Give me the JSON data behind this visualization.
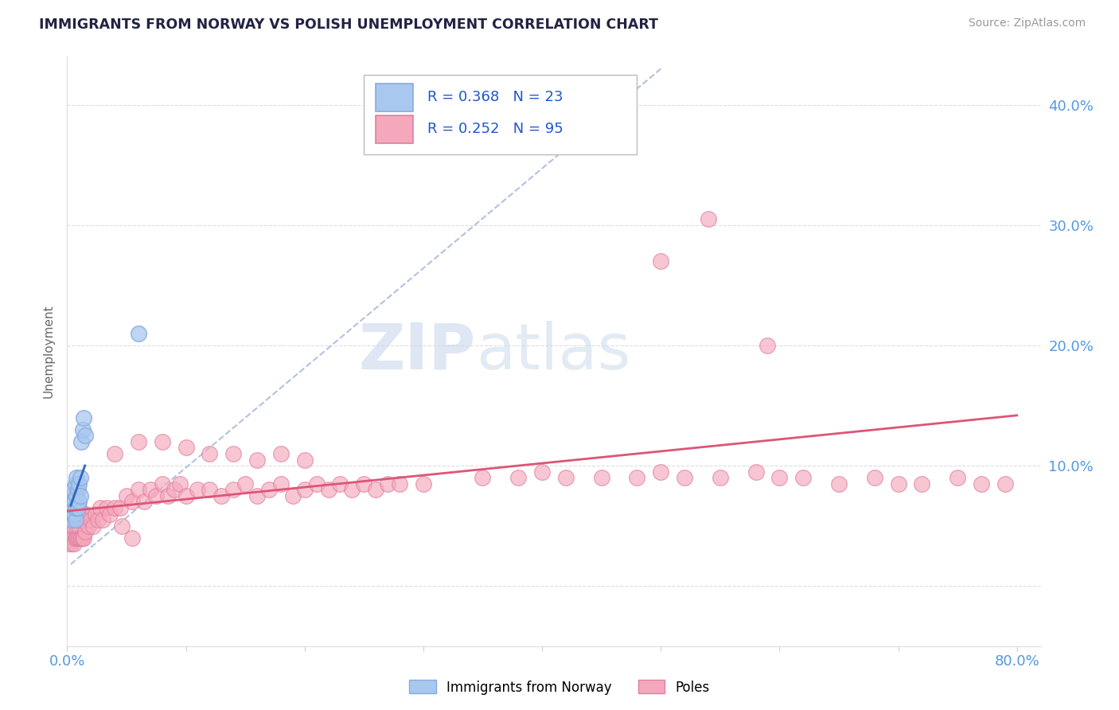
{
  "title": "IMMIGRANTS FROM NORWAY VS POLISH UNEMPLOYMENT CORRELATION CHART",
  "source": "Source: ZipAtlas.com",
  "ylabel": "Unemployment",
  "xlim_min": 0.0,
  "xlim_max": 0.82,
  "ylim_min": -0.05,
  "ylim_max": 0.44,
  "norway_color": "#a8c8f0",
  "norway_edge_color": "#88aadd",
  "poles_color": "#f5a8bc",
  "poles_edge_color": "#e080a0",
  "norway_line_color": "#3366bb",
  "poles_line_color": "#dd5577",
  "dash_line_color": "#aabbdd",
  "norway_R": "0.368",
  "norway_N": "23",
  "poles_R": "0.252",
  "poles_N": "95",
  "legend_text_color": "#2255cc",
  "ytick_color": "#5599dd",
  "xtick_color": "#5599dd",
  "watermark_zip": "ZIP",
  "watermark_atlas": "atlas",
  "watermark_color_zip": "#c8d8ec",
  "watermark_color_atlas": "#c0d4e8",
  "grid_color": "#dddddd",
  "norway_x": [
    0.003,
    0.004,
    0.004,
    0.005,
    0.005,
    0.005,
    0.006,
    0.006,
    0.007,
    0.007,
    0.007,
    0.008,
    0.008,
    0.009,
    0.009,
    0.01,
    0.01,
    0.011,
    0.011,
    0.012,
    0.013,
    0.014,
    0.015
  ],
  "norway_y": [
    0.065,
    0.055,
    0.075,
    0.06,
    0.07,
    0.08,
    0.06,
    0.07,
    0.055,
    0.065,
    0.085,
    0.075,
    0.09,
    0.065,
    0.08,
    0.07,
    0.085,
    0.075,
    0.09,
    0.12,
    0.13,
    0.14,
    0.125
  ],
  "norway_outlier_x": [
    0.06
  ],
  "norway_outlier_y": [
    0.21
  ],
  "poles_x_low": [
    0.002,
    0.003,
    0.003,
    0.004,
    0.004,
    0.005,
    0.005,
    0.006,
    0.006,
    0.007,
    0.007,
    0.007,
    0.008,
    0.008,
    0.008,
    0.009,
    0.009,
    0.01,
    0.01,
    0.01,
    0.011,
    0.011,
    0.012,
    0.012,
    0.013,
    0.013,
    0.014,
    0.014,
    0.015,
    0.016,
    0.018,
    0.02,
    0.022,
    0.024,
    0.026,
    0.028,
    0.03,
    0.033,
    0.036,
    0.04
  ],
  "poles_y_low": [
    0.035,
    0.04,
    0.055,
    0.035,
    0.05,
    0.04,
    0.06,
    0.035,
    0.05,
    0.04,
    0.055,
    0.065,
    0.04,
    0.05,
    0.065,
    0.04,
    0.055,
    0.04,
    0.05,
    0.065,
    0.04,
    0.055,
    0.04,
    0.055,
    0.04,
    0.06,
    0.04,
    0.055,
    0.045,
    0.06,
    0.05,
    0.055,
    0.05,
    0.06,
    0.055,
    0.065,
    0.055,
    0.065,
    0.06,
    0.065
  ],
  "poles_x_mid": [
    0.045,
    0.05,
    0.055,
    0.06,
    0.065,
    0.07,
    0.075,
    0.08,
    0.085,
    0.09,
    0.095,
    0.1,
    0.11,
    0.12,
    0.13,
    0.14,
    0.15,
    0.16,
    0.17,
    0.18,
    0.19,
    0.2,
    0.21,
    0.22,
    0.23,
    0.24,
    0.25,
    0.26,
    0.27,
    0.28
  ],
  "poles_y_mid": [
    0.065,
    0.075,
    0.07,
    0.08,
    0.07,
    0.08,
    0.075,
    0.085,
    0.075,
    0.08,
    0.085,
    0.075,
    0.08,
    0.08,
    0.075,
    0.08,
    0.085,
    0.075,
    0.08,
    0.085,
    0.075,
    0.08,
    0.085,
    0.08,
    0.085,
    0.08,
    0.085,
    0.08,
    0.085,
    0.085
  ],
  "poles_x_high": [
    0.3,
    0.35,
    0.38,
    0.4,
    0.42,
    0.45,
    0.48,
    0.5,
    0.52,
    0.55,
    0.58,
    0.6,
    0.62,
    0.65,
    0.68,
    0.7,
    0.72,
    0.75,
    0.77,
    0.79
  ],
  "poles_y_high": [
    0.085,
    0.09,
    0.09,
    0.095,
    0.09,
    0.09,
    0.09,
    0.095,
    0.09,
    0.09,
    0.095,
    0.09,
    0.09,
    0.085,
    0.09,
    0.085,
    0.085,
    0.09,
    0.085,
    0.085
  ],
  "poles_outliers_x": [
    0.38,
    0.5,
    0.54,
    0.59,
    0.04,
    0.06,
    0.08,
    0.1,
    0.12,
    0.14,
    0.16,
    0.18,
    0.2,
    0.046,
    0.055
  ],
  "poles_outliers_y": [
    0.39,
    0.27,
    0.305,
    0.2,
    0.11,
    0.12,
    0.12,
    0.115,
    0.11,
    0.11,
    0.105,
    0.11,
    0.105,
    0.05,
    0.04
  ]
}
